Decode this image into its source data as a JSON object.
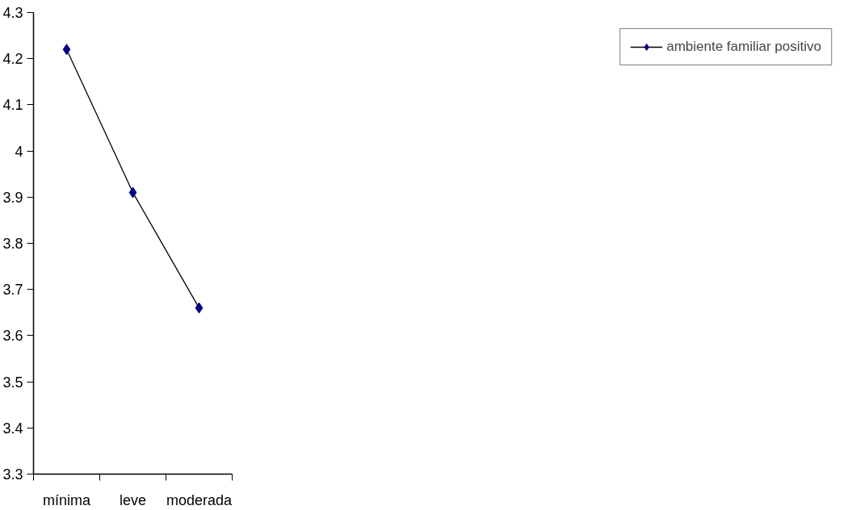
{
  "chart_data": {
    "type": "line",
    "categories": [
      "mínima",
      "leve",
      "moderada"
    ],
    "series": [
      {
        "name": "ambiente familiar positivo",
        "color": "#000080",
        "values": [
          4.22,
          3.91,
          3.66
        ]
      }
    ],
    "ylim": [
      3.3,
      4.3
    ],
    "yticks": [
      3.3,
      3.4,
      3.5,
      3.6,
      3.7,
      3.8,
      3.9,
      4,
      4.1,
      4.2,
      4.3
    ],
    "marker": "diamond",
    "line_style": "solid",
    "grid": false,
    "legend": "right"
  }
}
